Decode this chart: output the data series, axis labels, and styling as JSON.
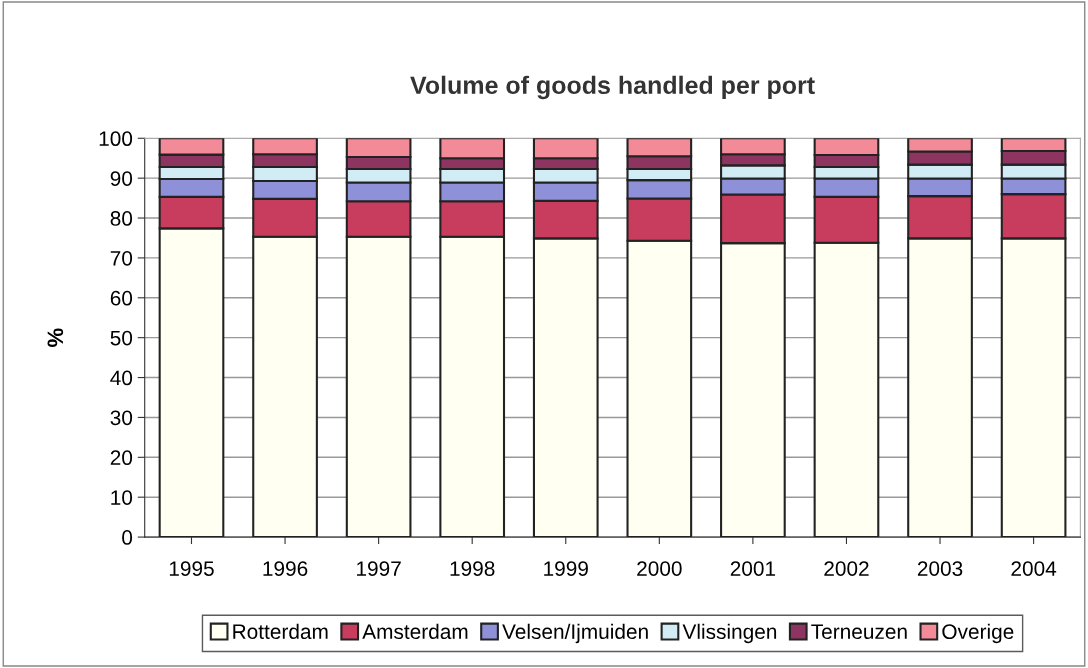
{
  "chart_data": {
    "type": "bar",
    "stacked": true,
    "title": "Volume of goods handled per port",
    "ylabel": "%",
    "categories": [
      "1995",
      "1996",
      "1997",
      "1998",
      "1999",
      "2000",
      "2001",
      "2002",
      "2003",
      "2004"
    ],
    "series": [
      {
        "name": "Rotterdam",
        "color": "#fffff2",
        "values": [
          77.4,
          75.3,
          75.3,
          75.3,
          74.9,
          74.3,
          73.7,
          73.8,
          74.9,
          74.9
        ]
      },
      {
        "name": "Amsterdam",
        "color": "#c83c5e",
        "values": [
          7.9,
          9.5,
          8.9,
          8.9,
          9.4,
          10.6,
          12.2,
          11.5,
          10.6,
          11.1
        ]
      },
      {
        "name": "Velsen/Ijmuiden",
        "color": "#8e90d8",
        "values": [
          4.5,
          4.5,
          4.7,
          4.7,
          4.6,
          4.6,
          4.0,
          4.6,
          4.4,
          3.9
        ]
      },
      {
        "name": "Vlissingen",
        "color": "#d2ecf6",
        "values": [
          3.0,
          3.5,
          3.4,
          3.4,
          3.4,
          2.8,
          3.3,
          2.9,
          3.5,
          3.5
        ]
      },
      {
        "name": "Terneuzen",
        "color": "#8e3460",
        "values": [
          3.1,
          3.2,
          3.0,
          2.7,
          2.7,
          3.2,
          2.8,
          3.0,
          3.3,
          3.4
        ]
      },
      {
        "name": "Overige",
        "color": "#f28a98",
        "values": [
          4.1,
          4.0,
          4.7,
          5.0,
          5.0,
          4.5,
          4.0,
          4.2,
          3.3,
          3.2
        ]
      }
    ],
    "ylim": [
      0,
      100
    ],
    "yticks": [
      0,
      10,
      20,
      30,
      40,
      50,
      60,
      70,
      80,
      90,
      100
    ],
    "grid": "y",
    "legend": "bottom"
  }
}
